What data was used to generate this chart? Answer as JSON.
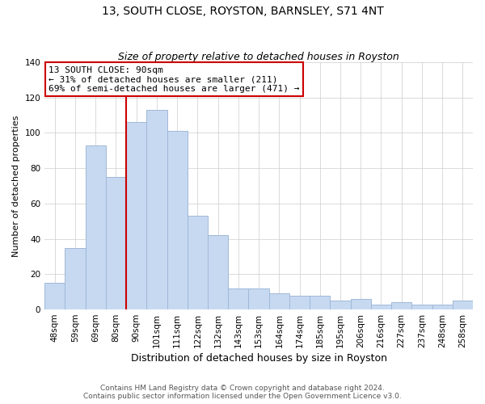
{
  "title": "13, SOUTH CLOSE, ROYSTON, BARNSLEY, S71 4NT",
  "subtitle": "Size of property relative to detached houses in Royston",
  "xlabel": "Distribution of detached houses by size in Royston",
  "ylabel": "Number of detached properties",
  "bar_labels": [
    "48sqm",
    "59sqm",
    "69sqm",
    "80sqm",
    "90sqm",
    "101sqm",
    "111sqm",
    "122sqm",
    "132sqm",
    "143sqm",
    "153sqm",
    "164sqm",
    "174sqm",
    "185sqm",
    "195sqm",
    "206sqm",
    "216sqm",
    "227sqm",
    "237sqm",
    "248sqm",
    "258sqm"
  ],
  "bar_values": [
    15,
    35,
    93,
    75,
    106,
    113,
    101,
    53,
    42,
    12,
    12,
    9,
    8,
    8,
    5,
    6,
    3,
    4,
    3,
    3,
    5
  ],
  "bar_color": "#c6d9f1",
  "bar_edge_color": "#a0b8d8",
  "vline_x_index": 4,
  "vline_color": "#cc0000",
  "ylim": [
    0,
    140
  ],
  "yticks": [
    0,
    20,
    40,
    60,
    80,
    100,
    120,
    140
  ],
  "annotation_line1": "13 SOUTH CLOSE: 90sqm",
  "annotation_line2": "← 31% of detached houses are smaller (211)",
  "annotation_line3": "69% of semi-detached houses are larger (471) →",
  "annotation_box_color": "#ffffff",
  "annotation_box_edge": "#cc0000",
  "footer_line1": "Contains HM Land Registry data © Crown copyright and database right 2024.",
  "footer_line2": "Contains public sector information licensed under the Open Government Licence v3.0.",
  "title_fontsize": 10,
  "subtitle_fontsize": 9,
  "xlabel_fontsize": 9,
  "ylabel_fontsize": 8,
  "tick_fontsize": 7.5,
  "annotation_fontsize": 8,
  "footer_fontsize": 6.5
}
